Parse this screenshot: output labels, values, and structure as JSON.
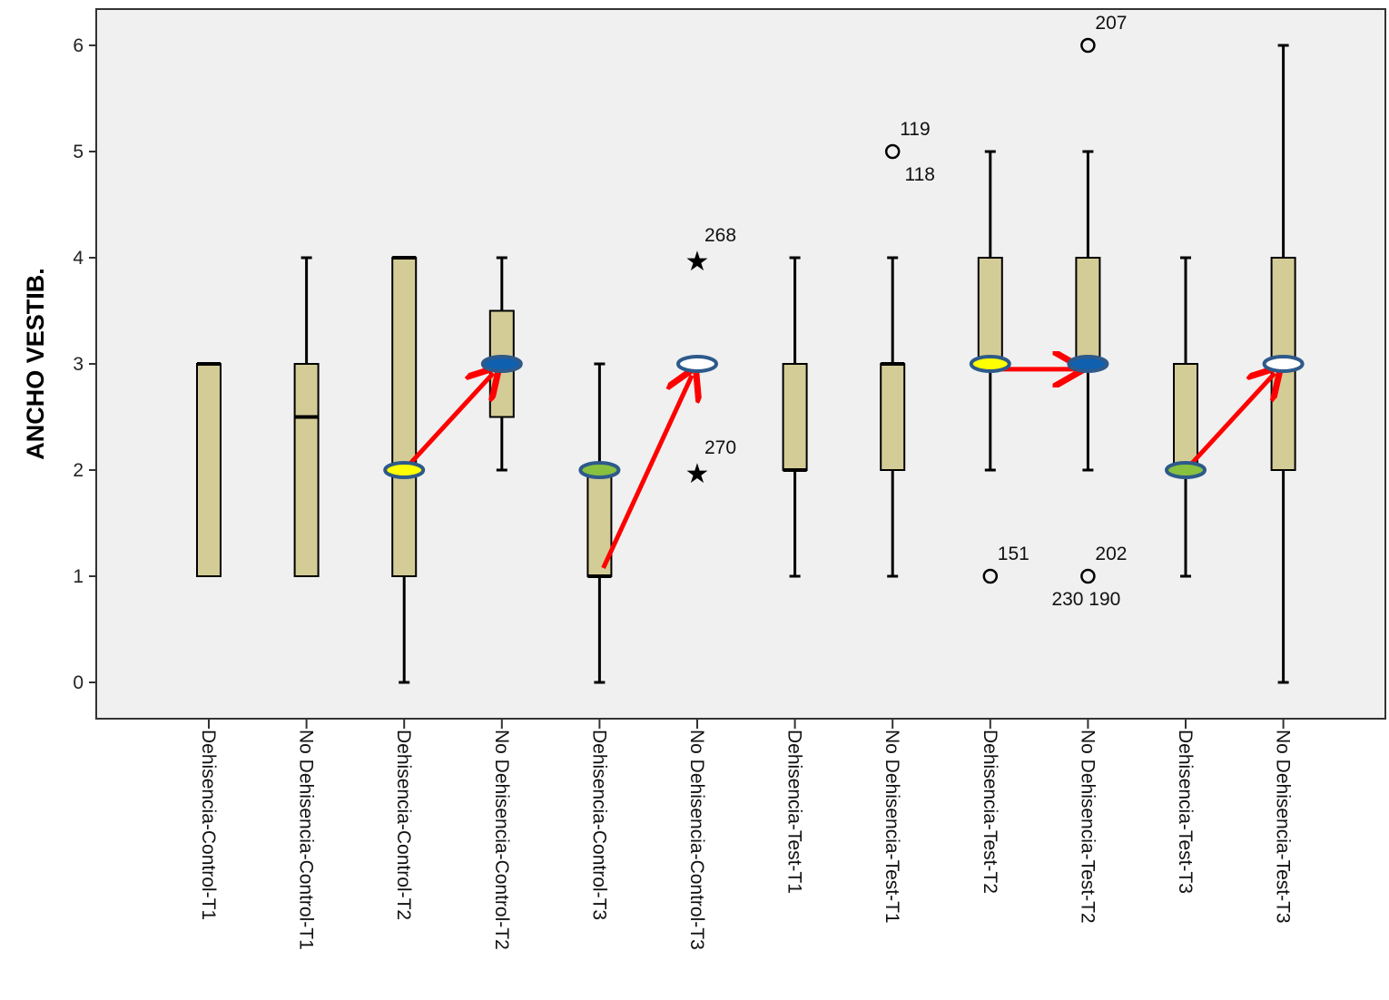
{
  "chart_data": {
    "type": "boxplot",
    "ylabel": "ANCHO VESTIB.",
    "xlabel": "",
    "ylim": [
      -0.3,
      6.4
    ],
    "yticks": [
      0,
      1,
      2,
      3,
      4,
      5,
      6
    ],
    "grid": false,
    "colors": {
      "box_fill": "#d4cc96",
      "plot_background": "#f0f0f0",
      "arrow": "#ff0000",
      "marker_outline": "#2e5a8a",
      "marker_yellow": "#ffff00",
      "marker_blue": "#1060b0",
      "marker_green": "#88c040",
      "marker_white": "#ffffff"
    },
    "categories": [
      "Dehisencia-Control-T1",
      "No Dehisencia-Control-T1",
      "Dehisencia-Control-T2",
      "No Dehisencia-Control-T2",
      "Dehisencia-Control-T3",
      "No Dehisencia-Control-T3",
      "Dehisencia-Test-T1",
      "No Dehisencia-Test-T1",
      "Dehisencia-Test-T2",
      "No Dehisencia-Test-T2",
      "Dehisencia-Test-T3",
      "No Dehisencia-Test-T3"
    ],
    "boxes": [
      {
        "min": 1,
        "q1": 1,
        "median": 3,
        "q3": 3,
        "max": 3
      },
      {
        "min": 1,
        "q1": 1,
        "median": 2.5,
        "q3": 3,
        "max": 4
      },
      {
        "min": 0,
        "q1": 1,
        "median": 4,
        "q3": 4,
        "max": 4
      },
      {
        "min": 2,
        "q1": 2.5,
        "median": 3,
        "q3": 3.5,
        "max": 4
      },
      {
        "min": 0,
        "q1": 1,
        "median": 1,
        "q3": 2,
        "max": 3
      },
      {
        "min": 3,
        "q1": 3,
        "median": 3,
        "q3": 3,
        "max": 3
      },
      {
        "min": 1,
        "q1": 2,
        "median": 2,
        "q3": 3,
        "max": 4
      },
      {
        "min": 1,
        "q1": 2,
        "median": 3,
        "q3": 3,
        "max": 4
      },
      {
        "min": 2,
        "q1": 3,
        "median": 3,
        "q3": 4,
        "max": 5
      },
      {
        "min": 2,
        "q1": 3,
        "median": 3,
        "q3": 4,
        "max": 5
      },
      {
        "min": 1,
        "q1": 2,
        "median": 2,
        "q3": 3,
        "max": 4
      },
      {
        "min": 0,
        "q1": 2,
        "median": 3,
        "q3": 4,
        "max": 6
      }
    ],
    "outliers": [
      {
        "category": 5,
        "value": 4,
        "symbol": "star",
        "labels": [
          "268"
        ],
        "label_pos": "above"
      },
      {
        "category": 5,
        "value": 2,
        "symbol": "star",
        "labels": [
          "270"
        ],
        "label_pos": "above"
      },
      {
        "category": 7,
        "value": 5,
        "symbol": "circle",
        "labels": [
          "119",
          "118"
        ],
        "label_pos": "above-below"
      },
      {
        "category": 8,
        "value": 1,
        "symbol": "circle",
        "labels": [
          "151"
        ],
        "label_pos": "above"
      },
      {
        "category": 9,
        "value": 6,
        "symbol": "circle",
        "labels": [
          "207"
        ],
        "label_pos": "above"
      },
      {
        "category": 9,
        "value": 1,
        "symbol": "circle",
        "labels": [
          "202",
          "230  190"
        ],
        "label_pos": "above-below"
      }
    ],
    "markers": [
      {
        "category": 2,
        "value": 2,
        "color": "yellow"
      },
      {
        "category": 3,
        "value": 3,
        "color": "blue"
      },
      {
        "category": 4,
        "value": 2,
        "color": "green"
      },
      {
        "category": 5,
        "value": 3,
        "color": "white"
      },
      {
        "category": 8,
        "value": 3,
        "color": "yellow"
      },
      {
        "category": 9,
        "value": 3,
        "color": "blue"
      },
      {
        "category": 10,
        "value": 2,
        "color": "green"
      },
      {
        "category": 11,
        "value": 3,
        "color": "white"
      }
    ],
    "arrows": [
      {
        "from": [
          2,
          2
        ],
        "to": [
          3,
          3
        ]
      },
      {
        "from": [
          4,
          1
        ],
        "to": [
          5,
          3
        ]
      },
      {
        "from": [
          8,
          2.95
        ],
        "to": [
          9,
          2.95
        ]
      },
      {
        "from": [
          10,
          2
        ],
        "to": [
          11,
          3
        ]
      }
    ]
  }
}
